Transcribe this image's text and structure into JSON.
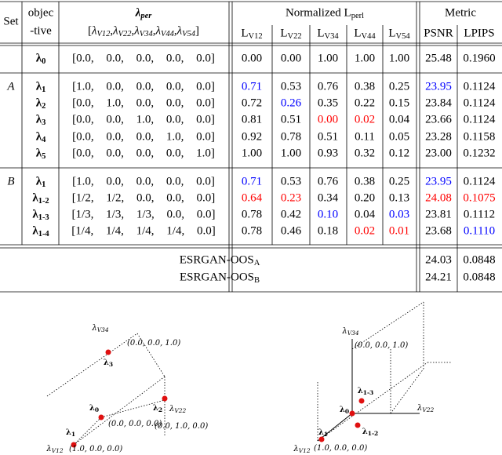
{
  "table": {
    "header": {
      "set": "Set",
      "objective": [
        "objec",
        "-tive"
      ],
      "lambda": {
        "base": "λ",
        "sub": "per"
      },
      "lambda_axes": {
        "open": "[",
        "sep": ",",
        "close": "]",
        "items": [
          {
            "base": "λ",
            "sub": "V12"
          },
          {
            "base": "λ",
            "sub": "V22"
          },
          {
            "base": "λ",
            "sub": "V34"
          },
          {
            "base": "λ",
            "sub": "V44"
          },
          {
            "base": "λ",
            "sub": "V54"
          }
        ]
      },
      "normalized": {
        "text": "Normalized ",
        "base": "L",
        "sub": "perl"
      },
      "loss_cols": [
        {
          "base": "L",
          "sub": "V12"
        },
        {
          "base": "L",
          "sub": "V22"
        },
        {
          "base": "L",
          "sub": "V34"
        },
        {
          "base": "L",
          "sub": "V44"
        },
        {
          "base": "L",
          "sub": "V54"
        }
      ],
      "metric": "Metric",
      "metric_cols": [
        "PSNR",
        "LPIPS"
      ]
    },
    "sections": [
      {
        "rows": [
          {
            "objective": {
              "base": "λ",
              "sub": "0"
            },
            "weights": "[0.0, 0.0, 0.0, 0.0, 0.0]",
            "losses": [
              "0.00",
              "0.00",
              "1.00",
              "1.00",
              "1.00"
            ],
            "metrics": [
              "25.48",
              "0.1960"
            ],
            "loss_colors": [
              "black",
              "black",
              "black",
              "black",
              "black"
            ],
            "metric_colors": [
              "black",
              "black"
            ]
          }
        ]
      },
      {
        "set": "A",
        "rows": [
          {
            "objective": {
              "base": "λ",
              "sub": "1"
            },
            "weights": "[1.0, 0.0, 0.0, 0.0, 0.0]",
            "losses": [
              "0.71",
              "0.53",
              "0.76",
              "0.38",
              "0.25"
            ],
            "metrics": [
              "23.95",
              "0.1124"
            ],
            "loss_colors": [
              "blue",
              "black",
              "black",
              "black",
              "black"
            ],
            "metric_colors": [
              "blue",
              "black"
            ]
          },
          {
            "objective": {
              "base": "λ",
              "sub": "2"
            },
            "weights": "[0.0, 1.0, 0.0, 0.0, 0.0]",
            "losses": [
              "0.72",
              "0.26",
              "0.35",
              "0.22",
              "0.15"
            ],
            "metrics": [
              "23.84",
              "0.1124"
            ],
            "loss_colors": [
              "black",
              "blue",
              "black",
              "black",
              "black"
            ],
            "metric_colors": [
              "black",
              "black"
            ]
          },
          {
            "objective": {
              "base": "λ",
              "sub": "3"
            },
            "weights": "[0.0, 0.0, 1.0, 0.0, 0.0]",
            "losses": [
              "0.81",
              "0.51",
              "0.00",
              "0.02",
              "0.04"
            ],
            "metrics": [
              "23.66",
              "0.1124"
            ],
            "loss_colors": [
              "black",
              "black",
              "red",
              "red",
              "black"
            ],
            "metric_colors": [
              "black",
              "black"
            ]
          },
          {
            "objective": {
              "base": "λ",
              "sub": "4"
            },
            "weights": "[0.0, 0.0, 0.0, 1.0, 0.0]",
            "losses": [
              "0.92",
              "0.78",
              "0.51",
              "0.11",
              "0.05"
            ],
            "metrics": [
              "23.28",
              "0.1158"
            ],
            "loss_colors": [
              "black",
              "black",
              "black",
              "black",
              "black"
            ],
            "metric_colors": [
              "black",
              "black"
            ]
          },
          {
            "objective": {
              "base": "λ",
              "sub": "5"
            },
            "weights": "[0.0, 0.0, 0.0, 0.0, 1.0]",
            "losses": [
              "1.00",
              "1.00",
              "0.93",
              "0.32",
              "0.12"
            ],
            "metrics": [
              "23.00",
              "0.1232"
            ],
            "loss_colors": [
              "black",
              "black",
              "black",
              "black",
              "black"
            ],
            "metric_colors": [
              "black",
              "black"
            ]
          }
        ]
      },
      {
        "set": "B",
        "rows": [
          {
            "objective": {
              "base": "λ",
              "sub": "1"
            },
            "weights": "[1.0, 0.0, 0.0, 0.0, 0.0]",
            "losses": [
              "0.71",
              "0.53",
              "0.76",
              "0.38",
              "0.25"
            ],
            "metrics": [
              "23.95",
              "0.1124"
            ],
            "loss_colors": [
              "blue",
              "black",
              "black",
              "black",
              "black"
            ],
            "metric_colors": [
              "blue",
              "black"
            ]
          },
          {
            "objective": {
              "base": "λ",
              "sub": "1-2"
            },
            "weights": "[1/2, 1/2, 0.0, 0.0, 0.0]",
            "losses": [
              "0.64",
              "0.23",
              "0.34",
              "0.20",
              "0.13"
            ],
            "metrics": [
              "24.08",
              "0.1075"
            ],
            "loss_colors": [
              "red",
              "red",
              "black",
              "black",
              "black"
            ],
            "metric_colors": [
              "red",
              "red"
            ]
          },
          {
            "objective": {
              "base": "λ",
              "sub": "1-3"
            },
            "weights": "[1/3, 1/3, 1/3, 0.0, 0.0]",
            "losses": [
              "0.78",
              "0.42",
              "0.10",
              "0.04",
              "0.03"
            ],
            "metrics": [
              "23.81",
              "0.1112"
            ],
            "loss_colors": [
              "black",
              "black",
              "blue",
              "black",
              "blue"
            ],
            "metric_colors": [
              "black",
              "black"
            ]
          },
          {
            "objective": {
              "base": "λ",
              "sub": "1-4"
            },
            "weights": "[1/4, 1/4, 1/4, 1/4, 0.0]",
            "losses": [
              "0.78",
              "0.46",
              "0.18",
              "0.02",
              "0.01"
            ],
            "metrics": [
              "23.68",
              "0.1110"
            ],
            "loss_colors": [
              "black",
              "black",
              "black",
              "red",
              "red"
            ],
            "metric_colors": [
              "black",
              "blue"
            ]
          }
        ]
      }
    ],
    "footer": [
      {
        "name": {
          "base": "ESRGAN-OOS",
          "sub": "A"
        },
        "metrics": [
          "24.03",
          "0.0848"
        ]
      },
      {
        "name": {
          "base": "ESRGAN-OOS",
          "sub": "B"
        },
        "metrics": [
          "24.21",
          "0.0848"
        ]
      }
    ]
  },
  "diagrams": [
    {
      "labels": [
        {
          "base": "λ",
          "sub": "V34"
        },
        {
          "text": "(0.0, 0.0, 1.0)"
        },
        {
          "base": "λ",
          "sub": "3"
        },
        {
          "base": "λ",
          "sub": "0"
        },
        {
          "text": "(0.0, 0.0, 0.0)"
        },
        {
          "base": "λ",
          "sub": "2"
        },
        {
          "base": "λ",
          "sub": "V22"
        },
        {
          "text": "(0.0, 1.0, 0.0)"
        },
        {
          "base": "λ",
          "sub": "1"
        },
        {
          "base": "λ",
          "sub": "V12"
        },
        {
          "text": "(1.0, 0.0, 0.0)"
        }
      ]
    },
    {
      "labels": [
        {
          "base": "λ",
          "sub": "V34"
        },
        {
          "text": "(0.0, 0.0, 1.0)"
        },
        {
          "base": "λ",
          "sub": "1-3"
        },
        {
          "base": "λ",
          "sub": "0"
        },
        {
          "base": "λ",
          "sub": "V22"
        },
        {
          "base": "λ",
          "sub": "1"
        },
        {
          "base": "λ",
          "sub": "1-2"
        },
        {
          "base": "λ",
          "sub": "V12"
        },
        {
          "text": "(1.0, 0.0, 0.0)"
        }
      ]
    }
  ]
}
